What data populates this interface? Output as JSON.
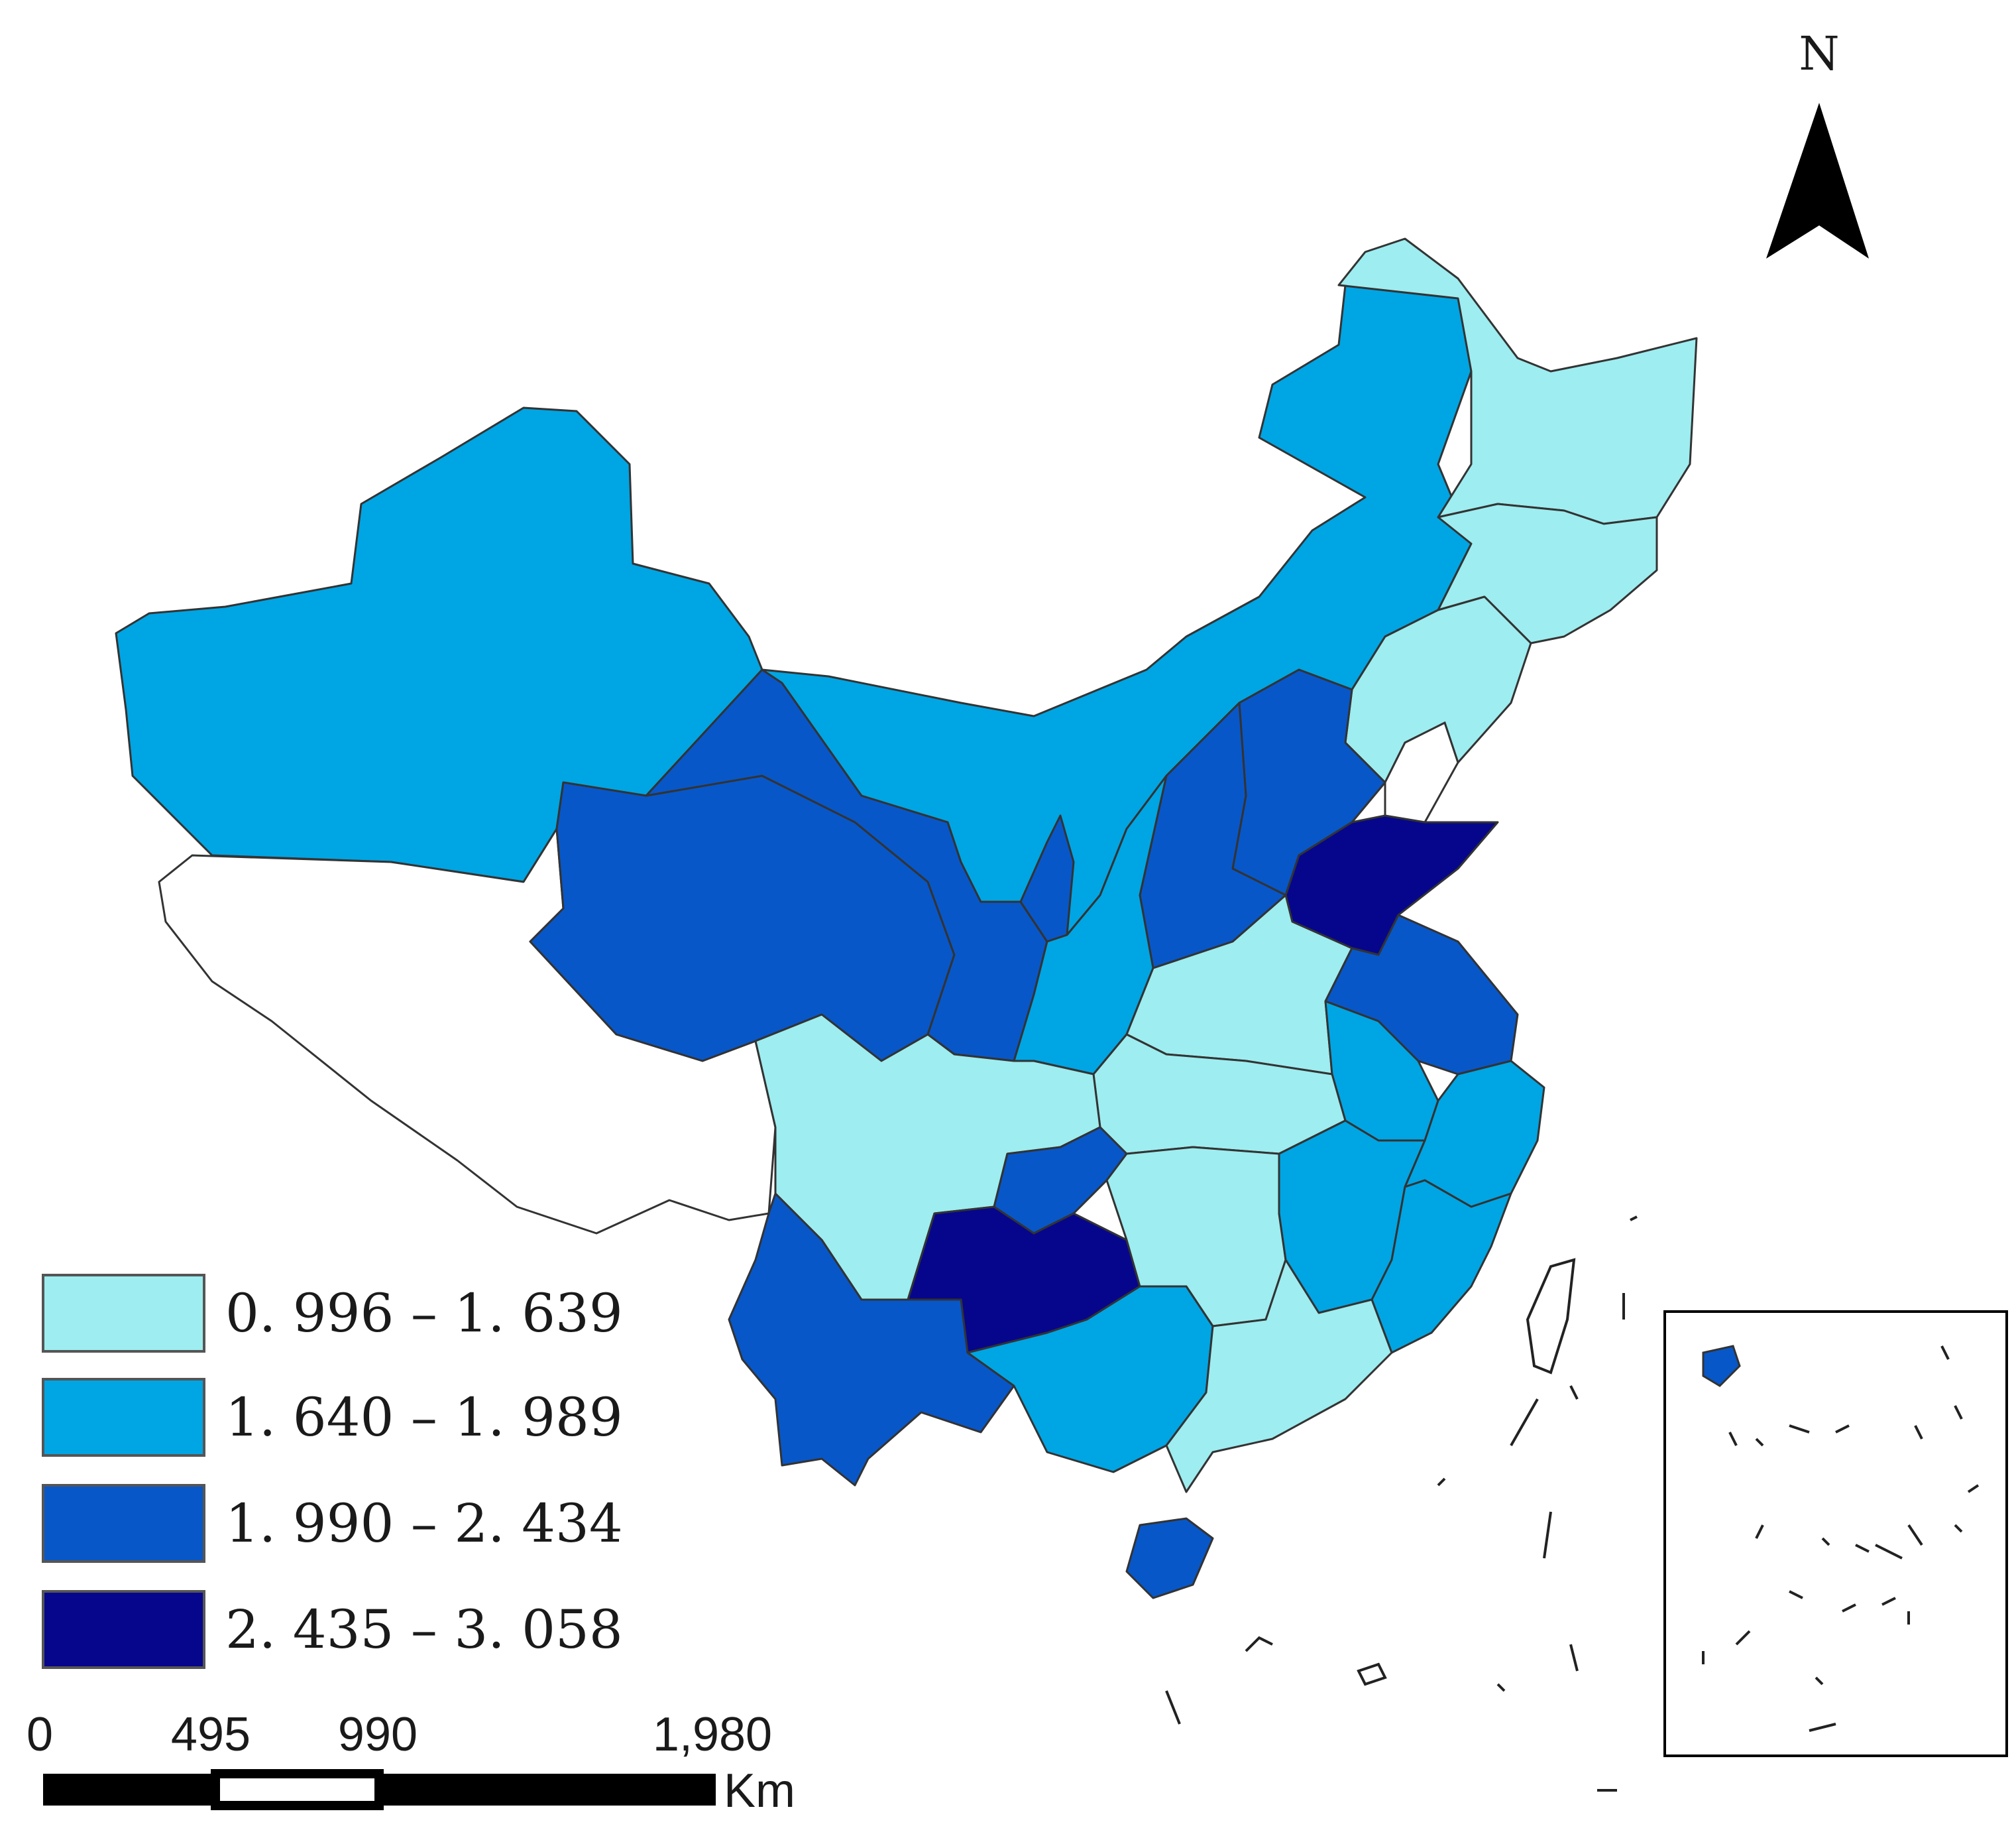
{
  "colors": {
    "class1": "#9eedf0",
    "class2": "#00a5e3",
    "class3": "#0857c8",
    "class4": "#06068c",
    "nodata": "#ffffff",
    "border": "#333333"
  },
  "north_arrow": {
    "label": "N",
    "icon": "north-arrow-icon"
  },
  "legend": {
    "items": [
      {
        "label": "0. 996 – 1. 639",
        "class": "class1"
      },
      {
        "label": "1. 640 – 1. 989",
        "class": "class2"
      },
      {
        "label": "1. 990 – 2. 434",
        "class": "class3"
      },
      {
        "label": "2. 435 – 3. 058",
        "class": "class4"
      }
    ]
  },
  "scale_bar": {
    "ticks": [
      "0",
      "495",
      "990",
      "1,980"
    ],
    "unit": "Km"
  },
  "regions": [
    {
      "id": "xinjiang",
      "class": "class2"
    },
    {
      "id": "tibet",
      "class": "nodata"
    },
    {
      "id": "qinghai",
      "class": "class3"
    },
    {
      "id": "gansu",
      "class": "class3"
    },
    {
      "id": "inner-mongolia",
      "class": "class2"
    },
    {
      "id": "heilongjiang",
      "class": "class1"
    },
    {
      "id": "jilin",
      "class": "class1"
    },
    {
      "id": "liaoning",
      "class": "class1"
    },
    {
      "id": "hebei",
      "class": "class3"
    },
    {
      "id": "shanxi",
      "class": "class3"
    },
    {
      "id": "shandong",
      "class": "class4"
    },
    {
      "id": "ningxia",
      "class": "class3"
    },
    {
      "id": "shaanxi",
      "class": "class2"
    },
    {
      "id": "henan",
      "class": "class1"
    },
    {
      "id": "jiangsu",
      "class": "class3"
    },
    {
      "id": "anhui",
      "class": "class2"
    },
    {
      "id": "hubei",
      "class": "class1"
    },
    {
      "id": "sichuan",
      "class": "class1"
    },
    {
      "id": "chongqing",
      "class": "class3"
    },
    {
      "id": "guizhou",
      "class": "class4"
    },
    {
      "id": "yunnan",
      "class": "class3"
    },
    {
      "id": "hunan",
      "class": "class1"
    },
    {
      "id": "jiangxi",
      "class": "class2"
    },
    {
      "id": "zhejiang",
      "class": "class2"
    },
    {
      "id": "fujian",
      "class": "class2"
    },
    {
      "id": "guangxi",
      "class": "class2"
    },
    {
      "id": "guangdong",
      "class": "class1"
    },
    {
      "id": "hainan",
      "class": "class3"
    }
  ]
}
